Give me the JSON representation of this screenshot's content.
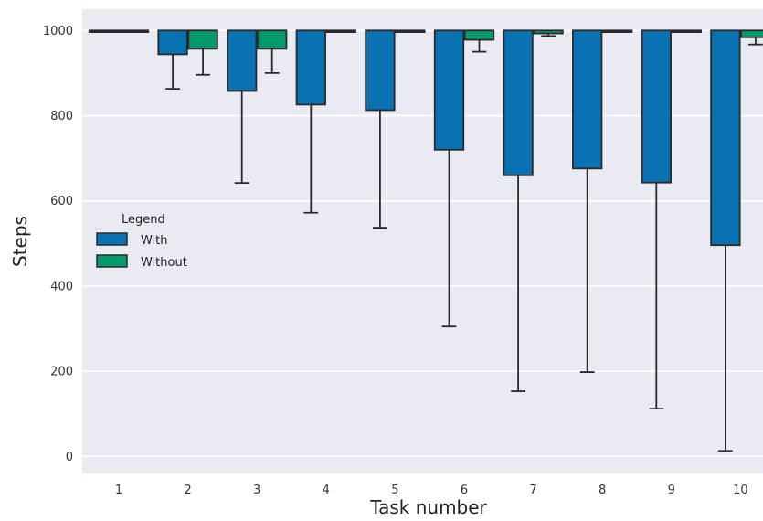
{
  "chart_data": {
    "type": "box",
    "xlabel": "Task number",
    "ylabel": "Steps",
    "categories": [
      "1",
      "2",
      "3",
      "4",
      "5",
      "6",
      "7",
      "8",
      "9",
      "10"
    ],
    "y_ticks": [
      "0",
      "200",
      "400",
      "600",
      "800",
      "1000"
    ],
    "ylim": [
      -40,
      1050
    ],
    "grid": true,
    "legend": {
      "title": "Legend",
      "position": "center-left",
      "entries": [
        "With",
        "Without"
      ]
    },
    "series": [
      {
        "name": "With",
        "color": "#0872b3",
        "boxes": [
          {
            "q1": 1000,
            "q3": 1000,
            "whisker_low": 1000,
            "whisker_high": 1000
          },
          {
            "q1": 944,
            "q3": 1000,
            "whisker_low": 863,
            "whisker_high": 1000
          },
          {
            "q1": 858,
            "q3": 1000,
            "whisker_low": 642,
            "whisker_high": 1000
          },
          {
            "q1": 826,
            "q3": 1000,
            "whisker_low": 572,
            "whisker_high": 1000
          },
          {
            "q1": 813,
            "q3": 1000,
            "whisker_low": 537,
            "whisker_high": 1000
          },
          {
            "q1": 720,
            "q3": 1000,
            "whisker_low": 305,
            "whisker_high": 1000
          },
          {
            "q1": 660,
            "q3": 1000,
            "whisker_low": 153,
            "whisker_high": 1000
          },
          {
            "q1": 676,
            "q3": 1000,
            "whisker_low": 198,
            "whisker_high": 1000
          },
          {
            "q1": 643,
            "q3": 1000,
            "whisker_low": 112,
            "whisker_high": 1000
          },
          {
            "q1": 496,
            "q3": 1000,
            "whisker_low": 13,
            "whisker_high": 1000
          }
        ]
      },
      {
        "name": "Without",
        "color": "#059a6e",
        "boxes": [
          {
            "q1": 1000,
            "q3": 1000,
            "whisker_low": 1000,
            "whisker_high": 1000
          },
          {
            "q1": 957,
            "q3": 1000,
            "whisker_low": 896,
            "whisker_high": 1000
          },
          {
            "q1": 957,
            "q3": 1000,
            "whisker_low": 900,
            "whisker_high": 1000
          },
          {
            "q1": 1000,
            "q3": 1000,
            "whisker_low": 1000,
            "whisker_high": 1000
          },
          {
            "q1": 1000,
            "q3": 1000,
            "whisker_low": 1000,
            "whisker_high": 1000
          },
          {
            "q1": 978,
            "q3": 1000,
            "whisker_low": 950,
            "whisker_high": 1000
          },
          {
            "q1": 993,
            "q3": 1000,
            "whisker_low": 987,
            "whisker_high": 1000
          },
          {
            "q1": 1000,
            "q3": 1000,
            "whisker_low": 1000,
            "whisker_high": 1000
          },
          {
            "q1": 1000,
            "q3": 1000,
            "whisker_low": 1000,
            "whisker_high": 1000
          },
          {
            "q1": 984,
            "q3": 1000,
            "whisker_low": 967,
            "whisker_high": 1000
          }
        ]
      }
    ]
  }
}
